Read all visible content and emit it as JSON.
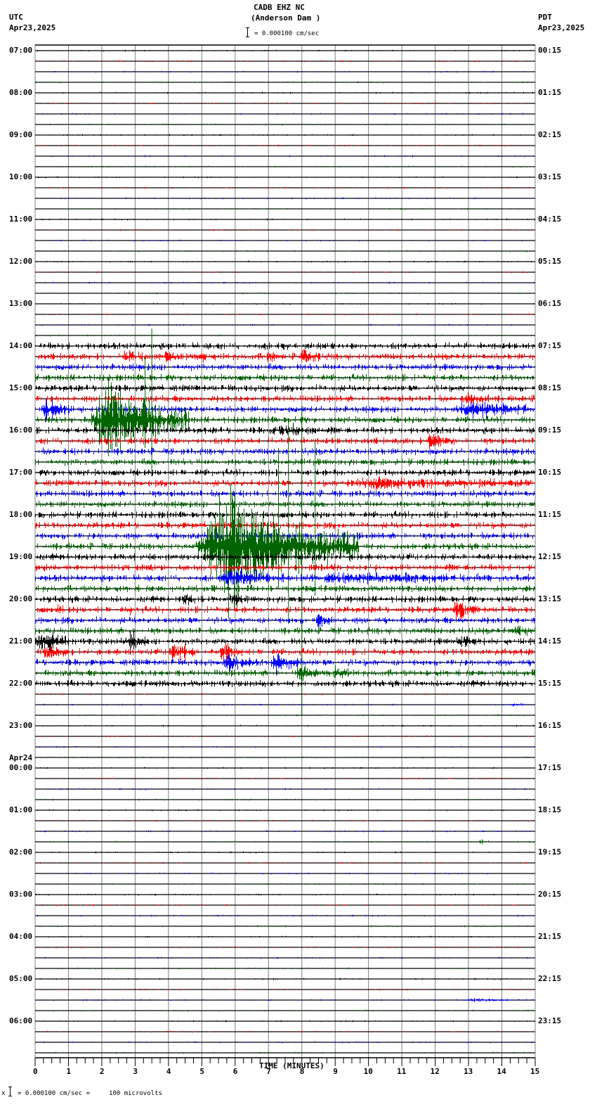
{
  "header": {
    "station": "CADB EHZ NC",
    "location": "(Anderson Dam )",
    "scale_top": "= 0.000100 cm/sec",
    "left_tz": "UTC",
    "left_date": "Apr23,2025",
    "right_tz": "PDT",
    "right_date": "Apr23,2025"
  },
  "footer": {
    "xlabel": "TIME (MINUTES)",
    "scale_prefix": "x",
    "scale_note": "= 0.000100 cm/sec =     100 microvolts"
  },
  "colors": {
    "trace_cycle": [
      "#000000",
      "#ff0000",
      "#0000ff",
      "#006400"
    ],
    "grid": "#808080",
    "baseline": "#000000"
  },
  "chart_data": {
    "type": "line",
    "title": "CADB EHZ NC (Anderson Dam ) helicorder",
    "xlabel": "TIME (MINUTES)",
    "ylabel": "",
    "xlim": [
      0,
      15
    ],
    "x_ticks": [
      "0",
      "1",
      "2",
      "3",
      "4",
      "5",
      "6",
      "7",
      "8",
      "9",
      "10",
      "11",
      "12",
      "13",
      "14",
      "15"
    ],
    "traces_per_hour": 4,
    "minutes_per_trace": 15,
    "utc_hour_labels": [
      "07:00",
      "08:00",
      "09:00",
      "10:00",
      "11:00",
      "12:00",
      "13:00",
      "14:00",
      "15:00",
      "16:00",
      "17:00",
      "18:00",
      "19:00",
      "20:00",
      "21:00",
      "22:00",
      "23:00",
      "00:00",
      "01:00",
      "02:00",
      "03:00",
      "04:00",
      "05:00",
      "06:00"
    ],
    "utc_date_change": {
      "before_label": "00:00",
      "text": "Apr24"
    },
    "pdt_hour_labels": [
      "00:15",
      "01:15",
      "02:15",
      "03:15",
      "04:15",
      "05:15",
      "06:15",
      "07:15",
      "08:15",
      "09:15",
      "10:15",
      "11:15",
      "12:15",
      "13:15",
      "14:15",
      "15:15",
      "16:15",
      "17:15",
      "18:15",
      "19:15",
      "20:15",
      "21:15",
      "22:15",
      "23:15"
    ],
    "noise_level_by_trace": {
      "quiet": 1.2,
      "active_range": [
        28,
        60
      ],
      "active_level": 4.5
    },
    "events": [
      {
        "trace": 29,
        "t0": 2.6,
        "t1": 3.4,
        "amp": 10
      },
      {
        "trace": 29,
        "t0": 3.8,
        "t1": 4.4,
        "amp": 8
      },
      {
        "trace": 29,
        "t0": 4.9,
        "t1": 5.4,
        "amp": 9
      },
      {
        "trace": 29,
        "t0": 6.9,
        "t1": 7.5,
        "amp": 9
      },
      {
        "trace": 29,
        "t0": 7.9,
        "t1": 8.6,
        "amp": 12
      },
      {
        "trace": 34,
        "t0": 0.1,
        "t1": 1.2,
        "amp": 14
      },
      {
        "trace": 35,
        "t0": 1.6,
        "t1": 4.6,
        "amp": 60
      },
      {
        "trace": 34,
        "t0": 12.6,
        "t1": 15.0,
        "amp": 14
      },
      {
        "trace": 33,
        "t0": 12.8,
        "t1": 13.6,
        "amp": 8
      },
      {
        "trace": 37,
        "t0": 11.7,
        "t1": 12.6,
        "amp": 12
      },
      {
        "trace": 36,
        "t0": 7.1,
        "t1": 8.4,
        "amp": 8
      },
      {
        "trace": 41,
        "t0": 9.3,
        "t1": 15.0,
        "amp": 8
      },
      {
        "trace": 47,
        "t0": 4.8,
        "t1": 9.7,
        "amp": 90
      },
      {
        "trace": 50,
        "t0": 5.5,
        "t1": 7.5,
        "amp": 16
      },
      {
        "trace": 50,
        "t0": 7.8,
        "t1": 15.0,
        "amp": 6
      },
      {
        "trace": 52,
        "t0": 4.4,
        "t1": 4.8,
        "amp": 10
      },
      {
        "trace": 52,
        "t0": 5.8,
        "t1": 6.4,
        "amp": 7
      },
      {
        "trace": 53,
        "t0": 0.6,
        "t1": 0.9,
        "amp": 8
      },
      {
        "trace": 53,
        "t0": 2.7,
        "t1": 3.0,
        "amp": 8
      },
      {
        "trace": 53,
        "t0": 12.5,
        "t1": 13.3,
        "amp": 16
      },
      {
        "trace": 54,
        "t0": 8.4,
        "t1": 8.9,
        "amp": 14
      },
      {
        "trace": 55,
        "t0": 14.2,
        "t1": 15.0,
        "amp": 8
      },
      {
        "trace": 56,
        "t0": 0.0,
        "t1": 1.0,
        "amp": 22
      },
      {
        "trace": 56,
        "t0": 2.7,
        "t1": 3.4,
        "amp": 14
      },
      {
        "trace": 56,
        "t0": 12.6,
        "t1": 13.3,
        "amp": 10
      },
      {
        "trace": 57,
        "t0": 0.2,
        "t1": 1.0,
        "amp": 14
      },
      {
        "trace": 57,
        "t0": 4.0,
        "t1": 4.8,
        "amp": 16
      },
      {
        "trace": 57,
        "t0": 5.5,
        "t1": 6.2,
        "amp": 14
      },
      {
        "trace": 58,
        "t0": 5.6,
        "t1": 6.5,
        "amp": 16
      },
      {
        "trace": 58,
        "t0": 7.0,
        "t1": 8.0,
        "amp": 16
      },
      {
        "trace": 59,
        "t0": 7.8,
        "t1": 8.5,
        "amp": 10
      },
      {
        "trace": 59,
        "t0": 8.9,
        "t1": 9.5,
        "amp": 12
      },
      {
        "trace": 62,
        "t0": 14.2,
        "t1": 14.8,
        "amp": 3
      },
      {
        "trace": 75,
        "t0": 13.3,
        "t1": 13.6,
        "amp": 4
      },
      {
        "trace": 90,
        "t0": 12.7,
        "t1": 15.0,
        "amp": 3
      }
    ],
    "spikes": [
      {
        "trace": 35,
        "t": 3.5,
        "up": 130,
        "down": 80
      },
      {
        "trace": 35,
        "t": 3.3,
        "up": 90,
        "down": 40
      },
      {
        "trace": 47,
        "t": 7.6,
        "up": 180,
        "down": 110
      },
      {
        "trace": 47,
        "t": 8.0,
        "up": 200,
        "down": 240
      },
      {
        "trace": 47,
        "t": 7.3,
        "up": 140,
        "down": 60
      },
      {
        "trace": 47,
        "t": 8.4,
        "up": 150,
        "down": 70
      }
    ]
  }
}
